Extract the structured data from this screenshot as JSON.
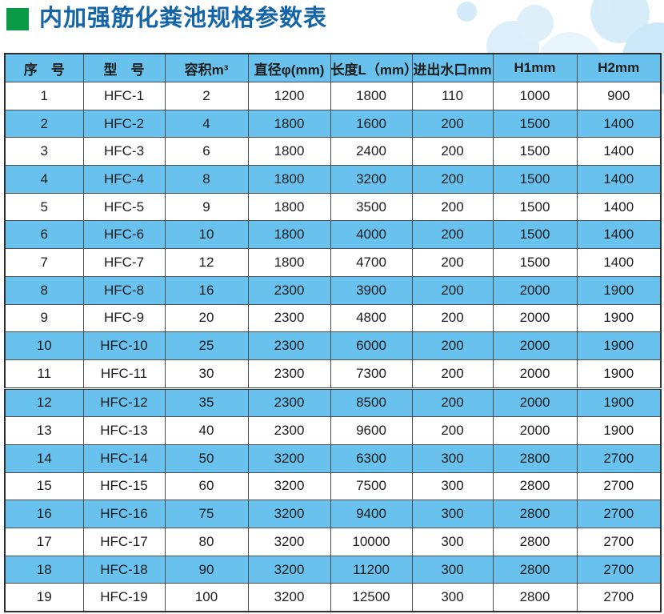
{
  "title": {
    "bullet_icon": "green-square-icon",
    "text": "内加强筋化粪池规格参数表"
  },
  "colors": {
    "title_blue": "#1464a8",
    "bullet_green": "#0a9a46",
    "row_blue": "#69c1ee",
    "border_dark": "#4c4c4c"
  },
  "table": {
    "headers": [
      "序　号",
      "型　号",
      "容积m³",
      "直径φ(mm)",
      "长度L（mm）",
      "进出水口mm",
      "H1mm",
      "H2mm"
    ],
    "rows": [
      [
        "1",
        "HFC-1",
        "2",
        "1200",
        "1800",
        "110",
        "1000",
        "900"
      ],
      [
        "2",
        "HFC-2",
        "4",
        "1800",
        "1600",
        "200",
        "1500",
        "1400"
      ],
      [
        "3",
        "HFC-3",
        "6",
        "1800",
        "2400",
        "200",
        "1500",
        "1400"
      ],
      [
        "4",
        "HFC-4",
        "8",
        "1800",
        "3200",
        "200",
        "1500",
        "1400"
      ],
      [
        "5",
        "HFC-5",
        "9",
        "1800",
        "3500",
        "200",
        "1500",
        "1400"
      ],
      [
        "6",
        "HFC-6",
        "10",
        "1800",
        "4000",
        "200",
        "1500",
        "1400"
      ],
      [
        "7",
        "HFC-7",
        "12",
        "1800",
        "4700",
        "200",
        "1500",
        "1400"
      ],
      [
        "8",
        "HFC-8",
        "16",
        "2300",
        "3900",
        "200",
        "2000",
        "1900"
      ],
      [
        "9",
        "HFC-9",
        "20",
        "2300",
        "4800",
        "200",
        "2000",
        "1900"
      ],
      [
        "10",
        "HFC-10",
        "25",
        "2300",
        "6000",
        "200",
        "2000",
        "1900"
      ],
      [
        "11",
        "HFC-11",
        "30",
        "2300",
        "7300",
        "200",
        "2000",
        "1900"
      ],
      [
        "12",
        "HFC-12",
        "35",
        "2300",
        "8500",
        "200",
        "2000",
        "1900"
      ],
      [
        "13",
        "HFC-13",
        "40",
        "2300",
        "9600",
        "200",
        "2000",
        "1900"
      ],
      [
        "14",
        "HFC-14",
        "50",
        "3200",
        "6300",
        "300",
        "2800",
        "2700"
      ],
      [
        "15",
        "HFC-15",
        "60",
        "3200",
        "7500",
        "300",
        "2800",
        "2700"
      ],
      [
        "16",
        "HFC-16",
        "75",
        "3200",
        "9400",
        "300",
        "2800",
        "2700"
      ],
      [
        "17",
        "HFC-17",
        "80",
        "3200",
        "10000",
        "300",
        "2800",
        "2700"
      ],
      [
        "18",
        "HFC-18",
        "90",
        "3200",
        "11200",
        "300",
        "2800",
        "2700"
      ],
      [
        "19",
        "HFC-19",
        "100",
        "3200",
        "12500",
        "300",
        "2800",
        "2700"
      ]
    ]
  }
}
